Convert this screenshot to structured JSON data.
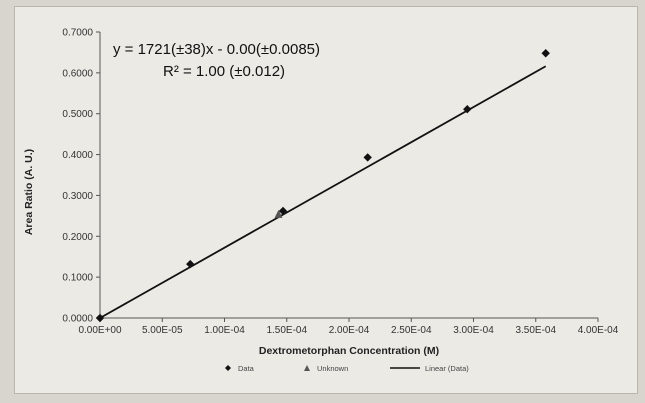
{
  "chart_data": {
    "type": "scatter",
    "title": "",
    "xlabel": "Dextrometorphan Concentration (M)",
    "ylabel": "Area Ratio (A. U.)",
    "xlim": [
      0,
      0.0004
    ],
    "ylim": [
      0,
      0.7
    ],
    "x_ticks": [
      "0.00E+00",
      "5.00E-05",
      "1.00E-04",
      "1.50E-04",
      "2.00E-04",
      "2.50E-04",
      "3.00E-04",
      "3.50E-04",
      "4.00E-04"
    ],
    "y_ticks": [
      "0.0000",
      "0.1000",
      "0.2000",
      "0.3000",
      "0.4000",
      "0.5000",
      "0.6000",
      "0.7000"
    ],
    "grid": false,
    "legend_position": "bottom",
    "annotations": {
      "equation": "y = 1721(±38)x - 0.00(±0.0085)",
      "r_squared": "R² = 1.00 (±0.012)"
    },
    "series": [
      {
        "name": "Data",
        "marker": "diamond",
        "color": "#111111",
        "points": [
          {
            "x": 0.0,
            "y": 0.0
          },
          {
            "x": 7.25e-05,
            "y": 0.132
          },
          {
            "x": 0.000147,
            "y": 0.262
          },
          {
            "x": 0.000215,
            "y": 0.393
          },
          {
            "x": 0.000295,
            "y": 0.511
          },
          {
            "x": 0.000358,
            "y": 0.648
          }
        ]
      },
      {
        "name": "Unknown",
        "marker": "triangle",
        "color": "#555555",
        "points": [
          {
            "x": 0.000145,
            "y": 0.255
          }
        ]
      },
      {
        "name": "Linear (Data)",
        "marker": "line",
        "color": "#111111",
        "slope": 1721,
        "intercept": 0.0,
        "x_range": [
          0.0,
          0.000358
        ]
      }
    ]
  }
}
